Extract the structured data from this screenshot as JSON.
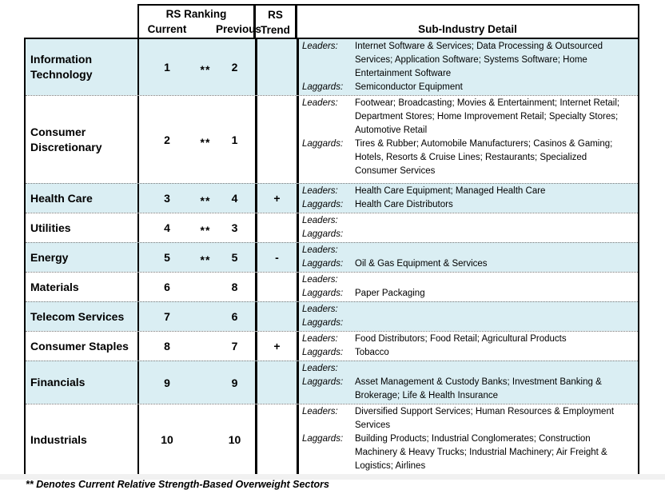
{
  "header": {
    "rs_ranking": "RS Ranking",
    "current": "Current",
    "previous": "Previous",
    "rs": "RS",
    "trend": "Trend",
    "sub_industry": "Sub-Industry Detail"
  },
  "labels": {
    "leaders": "Leaders:",
    "laggards": "Laggards:"
  },
  "colors": {
    "row_shading": "#daeef3",
    "border": "#000000"
  },
  "rows": [
    {
      "sector": "Information Technology",
      "current": "1",
      "stars": "**",
      "previous": "2",
      "trend": "",
      "leaders": "Internet Software & Services; Data Processing & Outsourced\nServices; Application Software; Systems Software; Home\nEntertainment Software",
      "laggards": "Semiconductor Equipment"
    },
    {
      "sector": "Consumer Discretionary",
      "current": "2",
      "stars": "**",
      "previous": "1",
      "trend": "",
      "leaders": "Footwear; Broadcasting; Movies & Entertainment; Internet Retail;\nDepartment Stores; Home Improvement Retail; Specialty Stores;\nAutomotive Retail",
      "laggards": "Tires & Rubber; Automobile Manufacturers; Casinos & Gaming;\nHotels, Resorts & Cruise Lines; Restaurants; Specialized\nConsumer Services"
    },
    {
      "sector": "Health Care",
      "current": "3",
      "stars": "**",
      "previous": "4",
      "trend": "+",
      "leaders": "Health Care Equipment; Managed Health Care",
      "laggards": "Health Care Distributors"
    },
    {
      "sector": "Utilities",
      "current": "4",
      "stars": "**",
      "previous": "3",
      "trend": "",
      "leaders": "",
      "laggards": ""
    },
    {
      "sector": "Energy",
      "current": "5",
      "stars": "**",
      "previous": "5",
      "trend": "-",
      "leaders": "",
      "laggards": "Oil & Gas Equipment & Services"
    },
    {
      "sector": "Materials",
      "current": "6",
      "stars": "",
      "previous": "8",
      "trend": "",
      "leaders": "",
      "laggards": "Paper Packaging"
    },
    {
      "sector": "Telecom Services",
      "current": "7",
      "stars": "",
      "previous": "6",
      "trend": "",
      "leaders": "",
      "laggards": ""
    },
    {
      "sector": "Consumer Staples",
      "current": "8",
      "stars": "",
      "previous": "7",
      "trend": "+",
      "leaders": "Food Distributors; Food Retail; Agricultural Products",
      "laggards": "Tobacco"
    },
    {
      "sector": "Financials",
      "current": "9",
      "stars": "",
      "previous": "9",
      "trend": "",
      "leaders": "",
      "laggards": "Asset Management & Custody Banks; Investment Banking &\nBrokerage; Life & Health Insurance"
    },
    {
      "sector": "Industrials",
      "current": "10",
      "stars": "",
      "previous": "10",
      "trend": "",
      "leaders": "Diversified Support Services; Human Resources & Employment\nServices",
      "laggards": "Building Products; Industrial Conglomerates; Construction\nMachinery & Heavy Trucks; Industrial Machinery; Air Freight &\nLogistics; Airlines"
    }
  ],
  "footnote": "** Denotes Current Relative Strength-Based Overweight Sectors"
}
